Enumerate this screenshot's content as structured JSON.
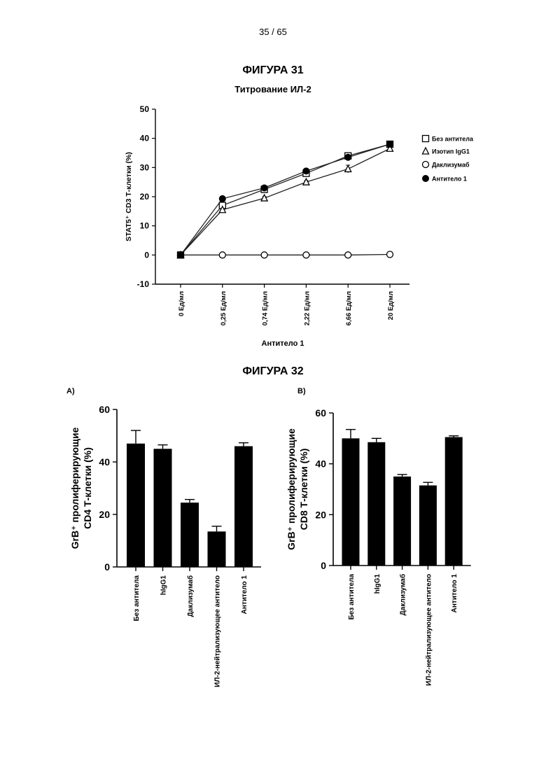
{
  "page": {
    "number": "35 / 65"
  },
  "figure31": {
    "title": "ФИГУРА 31",
    "subtitle": "Титрование ИЛ-2"
  },
  "figure32": {
    "title": "ФИГУРА 32",
    "panel_a_label": "A)",
    "panel_b_label": "B)"
  },
  "chart_data": [
    {
      "type": "line",
      "title": "ФИГУРА 31",
      "subtitle": "Титрование ИЛ-2",
      "xlabel": "Антитело 1",
      "ylabel": "STAT5⁺ CD3 Т-клетки (%)",
      "categories": [
        "0 Ед/мл",
        "0,25 Ед/мл",
        "0,74 Ед/мл",
        "2,22 Ед/мл",
        "6,66 Ед/мл",
        "20 Ед/мл"
      ],
      "ylim": [
        -10,
        50
      ],
      "yticks": [
        -10,
        0,
        10,
        20,
        30,
        40,
        50
      ],
      "legend_position": "right",
      "series": [
        {
          "name": "Без антитела",
          "marker": "open-square",
          "values": [
            0,
            17,
            22.5,
            28,
            34,
            38
          ],
          "errors": [
            0,
            0.5,
            0.5,
            0.5,
            1,
            0.5
          ]
        },
        {
          "name": "Изотип IgG1",
          "marker": "open-triangle",
          "values": [
            0,
            15.5,
            19.5,
            25,
            29.5,
            36.5
          ],
          "errors": [
            0,
            0.5,
            0.5,
            0.5,
            1.3,
            0.5
          ]
        },
        {
          "name": "Даклизумаб",
          "marker": "open-circle",
          "values": [
            0,
            0,
            0,
            0,
            0,
            0.2
          ],
          "errors": [
            0,
            0,
            0,
            0,
            0,
            0
          ]
        },
        {
          "name": "Антитело 1",
          "marker": "filled-circle",
          "values": [
            0,
            19.3,
            23,
            28.8,
            33.5,
            38
          ],
          "errors": [
            0,
            0.5,
            0.5,
            0.5,
            1,
            0.5
          ]
        }
      ]
    },
    {
      "type": "bar",
      "panel": "A)",
      "ylabel_line1": "GrB⁺ пролиферирующие",
      "ylabel_line2": "CD4 Т-клетки (%)",
      "categories": [
        "Без антитела",
        "hIgG1",
        "Даклизумаб",
        "ИЛ-2-нейтрализующее антитело",
        "Антитело 1"
      ],
      "values": [
        47,
        45,
        24.5,
        13.5,
        46
      ],
      "errors": [
        5,
        1.5,
        1.2,
        2,
        1.3
      ],
      "ylim": [
        0,
        60
      ],
      "yticks": [
        0,
        20,
        40,
        60
      ]
    },
    {
      "type": "bar",
      "panel": "B)",
      "ylabel_line1": "GrB⁺ пролиферирующие",
      "ylabel_line2": "CD8 Т-клетки (%)",
      "categories": [
        "Без антитела",
        "hIgG1",
        "Даклизумаб",
        "ИЛ-2-нейтрализующее антитело",
        "Антитело 1"
      ],
      "values": [
        50,
        48.5,
        35,
        31.5,
        50.5
      ],
      "errors": [
        3.5,
        1.5,
        0.8,
        1.2,
        0.5
      ],
      "ylim": [
        0,
        60
      ],
      "yticks": [
        0,
        20,
        40,
        60
      ]
    }
  ]
}
